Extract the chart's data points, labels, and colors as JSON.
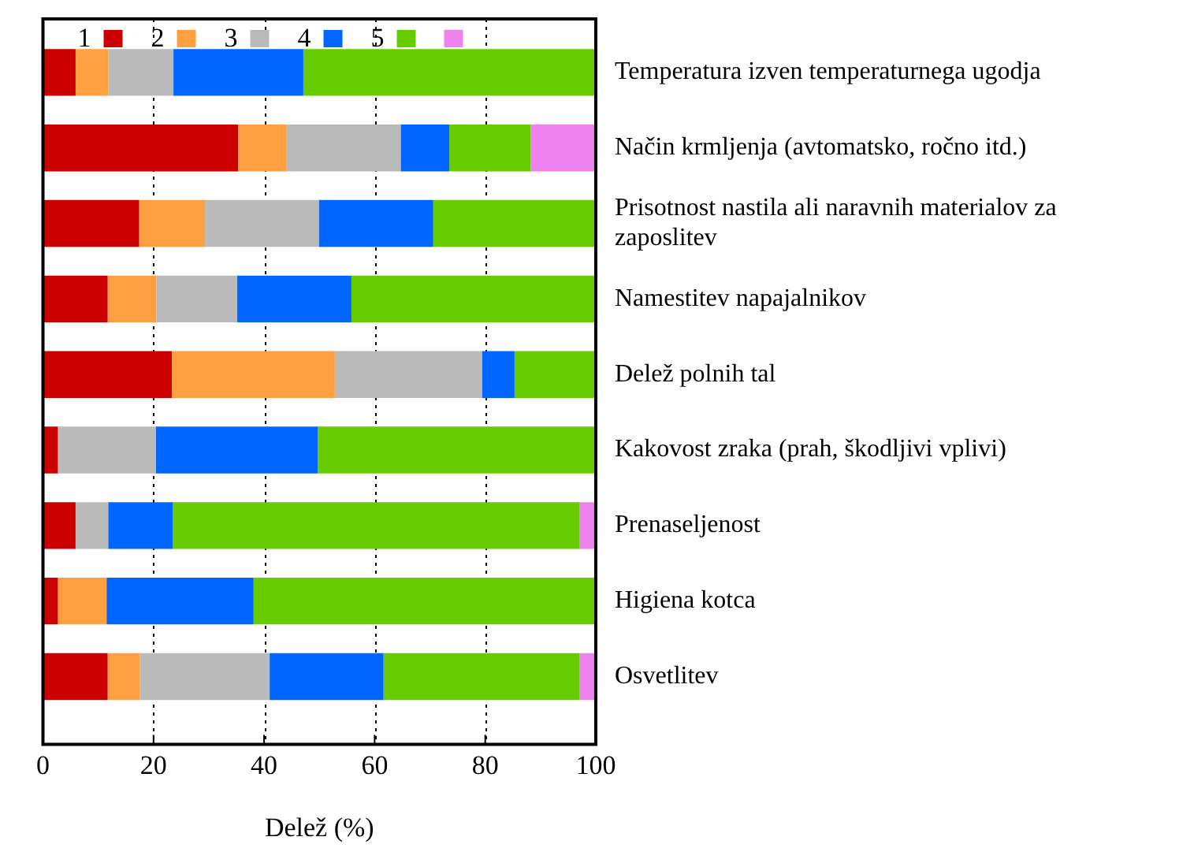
{
  "chart_data": {
    "type": "bar",
    "orientation": "horizontal",
    "stacked": true,
    "xlabel": "Delež (%)",
    "categories": [
      "Temperatura izven temperaturnega ugodja",
      "Način krmljenja (avtomatsko, ročno itd.)",
      "Prisotnost nastila ali naravnih materialov za zaposlitev",
      "Namestitev napajalnikov",
      "Delež polnih tal",
      "Kakovost zraka (prah, škodljivi vplivi)",
      "Prenaseljenost",
      "Higiena kotca",
      "Osvetlitev"
    ],
    "series": [
      {
        "name": "1",
        "color": "#cc0000",
        "values": [
          5.9,
          35.3,
          17.4,
          11.7,
          23.3,
          2.7,
          5.9,
          2.7,
          11.7
        ]
      },
      {
        "name": "2",
        "color": "#ffa040",
        "values": [
          5.9,
          8.8,
          11.9,
          8.8,
          29.5,
          0,
          0,
          8.8,
          5.8
        ]
      },
      {
        "name": "3",
        "color": "#bababa",
        "values": [
          11.8,
          20.6,
          20.6,
          14.6,
          26.6,
          17.7,
          5.9,
          0,
          23.5
        ]
      },
      {
        "name": "4",
        "color": "#0066ff",
        "values": [
          23.5,
          8.8,
          20.7,
          20.7,
          5.9,
          29.3,
          11.7,
          26.6,
          20.6
        ]
      },
      {
        "name": "5",
        "color": "#66cc00",
        "values": [
          52.9,
          14.7,
          29.4,
          44.2,
          14.7,
          50.3,
          73.6,
          61.9,
          35.5
        ]
      },
      {
        "color": "#ee82ee",
        "values": [
          0,
          11.8,
          0,
          0,
          0,
          0,
          2.9,
          0,
          2.9
        ]
      }
    ],
    "xlim": [
      0,
      100
    ],
    "xticks": [
      0,
      20,
      40,
      60,
      80,
      100
    ],
    "grid": "x",
    "legend": "top left"
  }
}
